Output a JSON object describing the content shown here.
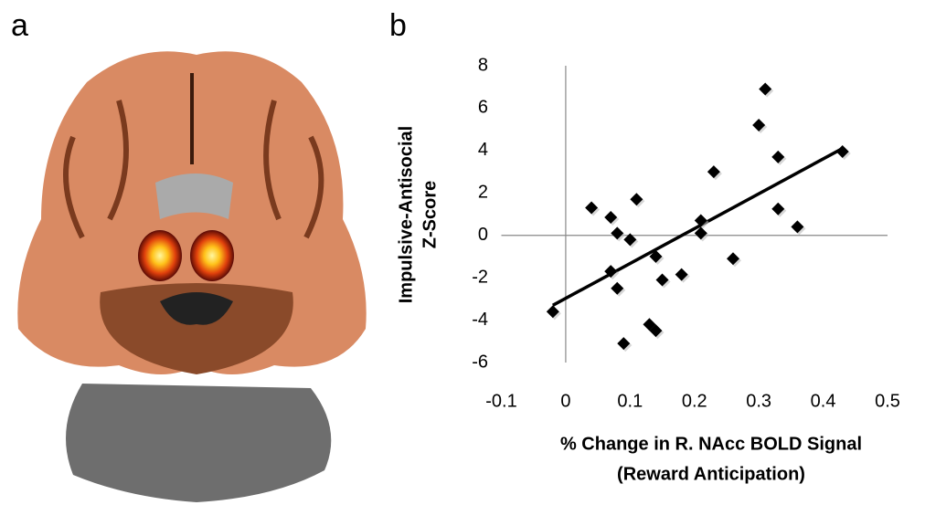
{
  "panel_labels": [
    "a",
    "b"
  ],
  "chart_data": {
    "type": "scatter",
    "xlabel": [
      "% Change in R. NAcc BOLD Signal",
      "(Reward Anticipation)"
    ],
    "ylabel": [
      "Impulsive-Antisocial",
      "Z-Score"
    ],
    "x": [
      -0.02,
      0.04,
      0.07,
      0.08,
      0.1,
      0.11,
      0.07,
      0.08,
      0.09,
      0.14,
      0.15,
      0.18,
      0.13,
      0.14,
      0.21,
      0.21,
      0.23,
      0.26,
      0.31,
      0.3,
      0.33,
      0.33,
      0.36,
      0.43
    ],
    "values": [
      -3.6,
      1.3,
      0.85,
      0.1,
      -0.2,
      1.7,
      -1.7,
      -2.5,
      -5.1,
      -1.0,
      -2.1,
      -1.85,
      -4.2,
      -4.5,
      0.7,
      0.1,
      3.0,
      -1.1,
      6.9,
      5.2,
      3.7,
      1.25,
      0.4,
      3.95
    ],
    "color": "#000000",
    "trendline": {
      "x": [
        -0.02,
        0.43
      ],
      "y": [
        -3.3,
        4.1
      ],
      "color": "#000000"
    },
    "xlim": [
      -0.1,
      0.5
    ],
    "ylim": [
      -6,
      8
    ],
    "xticks": [
      -0.1,
      0,
      0.1,
      0.2,
      0.3,
      0.4,
      0.5
    ],
    "yticks": [
      -6,
      -4,
      -2,
      0,
      2,
      4,
      6,
      8
    ]
  }
}
